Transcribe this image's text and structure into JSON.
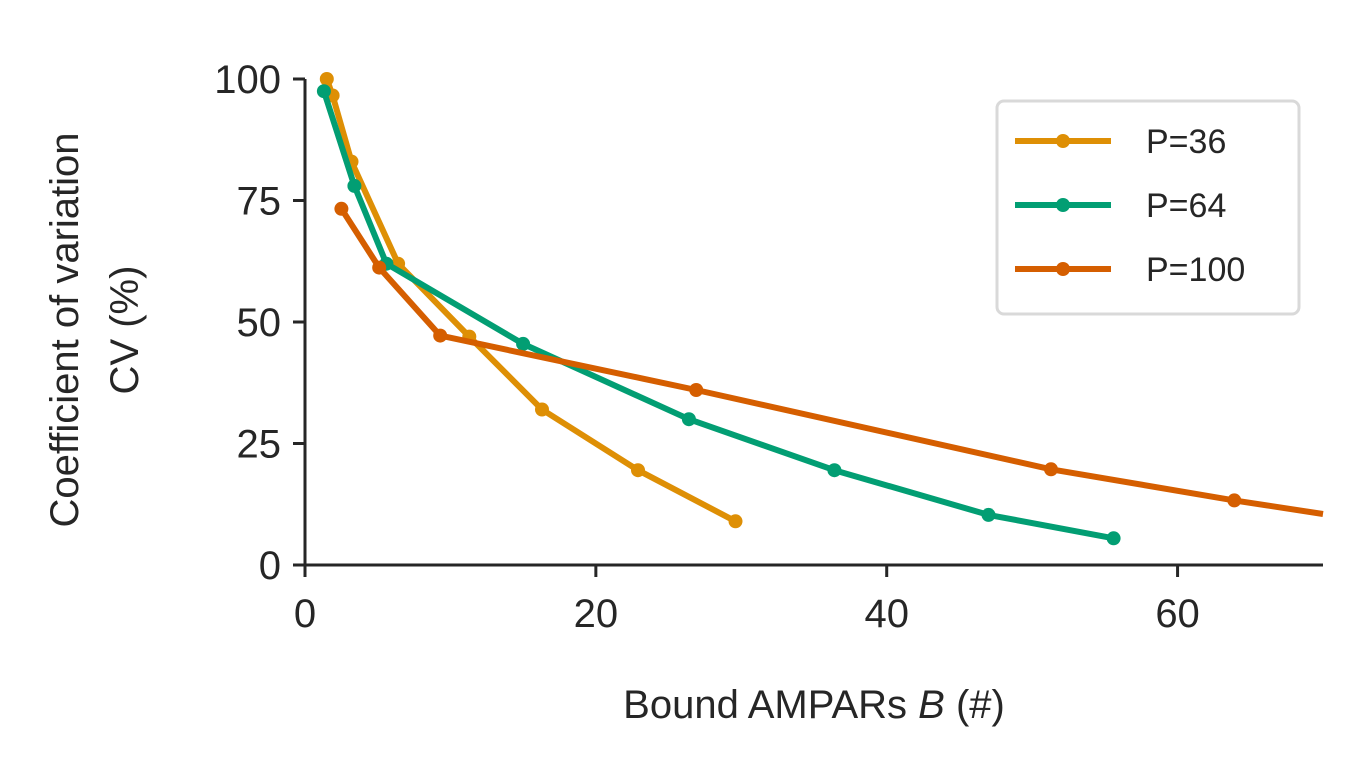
{
  "chart_data": {
    "type": "line",
    "xlabel_prefix": "Bound AMPARs ",
    "xlabel_var": "B",
    "xlabel_suffix": " (#)",
    "ylabel_line1": "Coefficient of variation",
    "ylabel_line2": "CV (%)",
    "xlim": [
      0,
      70
    ],
    "ylim": [
      0,
      100
    ],
    "xticks": [
      0,
      20,
      40,
      60
    ],
    "yticks": [
      0,
      25,
      50,
      75,
      100
    ],
    "grid": false,
    "legend_position": "top-right",
    "series": [
      {
        "name": "P=36",
        "color": "#de8f05",
        "x": [
          1.5,
          1.9,
          3.2,
          6.4,
          11.3,
          16.3,
          22.9,
          29.6
        ],
        "y": [
          100,
          96.6,
          83,
          62,
          47,
          32,
          19.5,
          9
        ]
      },
      {
        "name": "P=64",
        "color": "#029e73",
        "x": [
          1.3,
          3.4,
          5.6,
          15.0,
          26.4,
          36.4,
          47.0,
          55.6
        ],
        "y": [
          97.5,
          78,
          62,
          45.5,
          30,
          19.5,
          10.3,
          5.5
        ]
      },
      {
        "name": "P=100",
        "color": "#d55e00",
        "x": [
          2.5,
          5.1,
          9.3,
          26.9,
          51.3,
          63.9,
          70
        ],
        "y": [
          73.3,
          61.2,
          47.2,
          36,
          19.7,
          13.3,
          10.5
        ]
      }
    ]
  }
}
